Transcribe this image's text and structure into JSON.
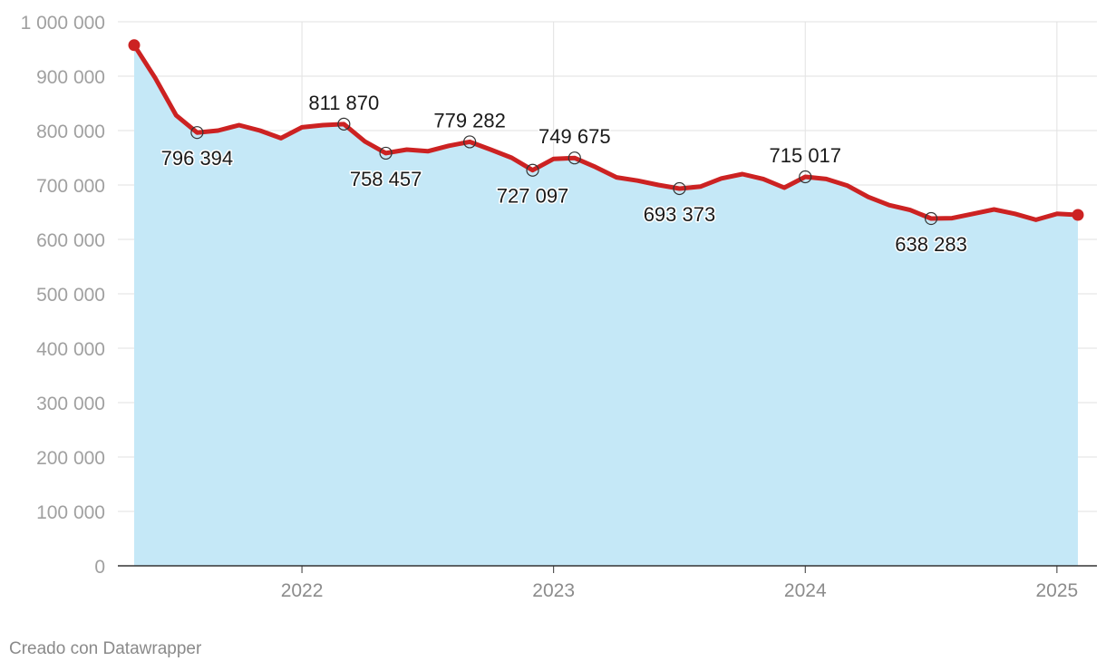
{
  "chart_data": {
    "type": "area",
    "title": "",
    "xlabel": "",
    "ylabel": "",
    "ylim": [
      0,
      1000000
    ],
    "yticks": [
      0,
      100000,
      200000,
      300000,
      400000,
      500000,
      600000,
      700000,
      800000,
      900000,
      1000000
    ],
    "ytick_labels": [
      "0",
      "100 000",
      "200 000",
      "300 000",
      "400 000",
      "500 000",
      "600 000",
      "700 000",
      "800 000",
      "900 000",
      "1 000 000"
    ],
    "xlim": [
      "2021-05",
      "2025-02"
    ],
    "xticks": [
      "2022-01",
      "2023-01",
      "2024-01",
      "2025-01"
    ],
    "xtick_labels": [
      "2022",
      "2023",
      "2024",
      "2025"
    ],
    "grid": true,
    "series": [
      {
        "color": "#cc2222",
        "fill": "#c5e8f7",
        "points": [
          [
            "2021-05",
            957000
          ],
          [
            "2021-06",
            897000
          ],
          [
            "2021-07",
            828000
          ],
          [
            "2021-08",
            796394
          ],
          [
            "2021-09",
            800000
          ],
          [
            "2021-10",
            810000
          ],
          [
            "2021-11",
            800000
          ],
          [
            "2021-12",
            786000
          ],
          [
            "2022-01",
            806000
          ],
          [
            "2022-02",
            810000
          ],
          [
            "2022-03",
            811870
          ],
          [
            "2022-04",
            780000
          ],
          [
            "2022-05",
            758457
          ],
          [
            "2022-06",
            765000
          ],
          [
            "2022-07",
            762000
          ],
          [
            "2022-08",
            772000
          ],
          [
            "2022-09",
            779282
          ],
          [
            "2022-10",
            765000
          ],
          [
            "2022-11",
            750000
          ],
          [
            "2022-12",
            727097
          ],
          [
            "2023-01",
            748000
          ],
          [
            "2023-02",
            749675
          ],
          [
            "2023-03",
            733000
          ],
          [
            "2023-04",
            714000
          ],
          [
            "2023-05",
            708000
          ],
          [
            "2023-06",
            700000
          ],
          [
            "2023-07",
            693373
          ],
          [
            "2023-08",
            697000
          ],
          [
            "2023-09",
            712000
          ],
          [
            "2023-10",
            720000
          ],
          [
            "2023-11",
            711000
          ],
          [
            "2023-12",
            695000
          ],
          [
            "2024-01",
            715017
          ],
          [
            "2024-02",
            711000
          ],
          [
            "2024-03",
            699000
          ],
          [
            "2024-04",
            678000
          ],
          [
            "2024-05",
            663000
          ],
          [
            "2024-06",
            654000
          ],
          [
            "2024-07",
            638283
          ],
          [
            "2024-08",
            639000
          ],
          [
            "2024-09",
            647000
          ],
          [
            "2024-10",
            655000
          ],
          [
            "2024-11",
            647000
          ],
          [
            "2024-12",
            636000
          ],
          [
            "2025-01",
            647000
          ],
          [
            "2025-02",
            645000
          ]
        ]
      }
    ],
    "annotations": [
      {
        "x": "2021-08",
        "y": 796394,
        "label": "796 394",
        "position": "below"
      },
      {
        "x": "2022-03",
        "y": 811870,
        "label": "811 870",
        "position": "above"
      },
      {
        "x": "2022-05",
        "y": 758457,
        "label": "758 457",
        "position": "below"
      },
      {
        "x": "2022-09",
        "y": 779282,
        "label": "779 282",
        "position": "above"
      },
      {
        "x": "2022-12",
        "y": 727097,
        "label": "727 097",
        "position": "below"
      },
      {
        "x": "2023-02",
        "y": 749675,
        "label": "749 675",
        "position": "above"
      },
      {
        "x": "2023-07",
        "y": 693373,
        "label": "693 373",
        "position": "below"
      },
      {
        "x": "2024-01",
        "y": 715017,
        "label": "715 017",
        "position": "above"
      },
      {
        "x": "2024-07",
        "y": 638283,
        "label": "638 283",
        "position": "below"
      }
    ]
  },
  "footer": {
    "credit": "Creado con Datawrapper"
  }
}
